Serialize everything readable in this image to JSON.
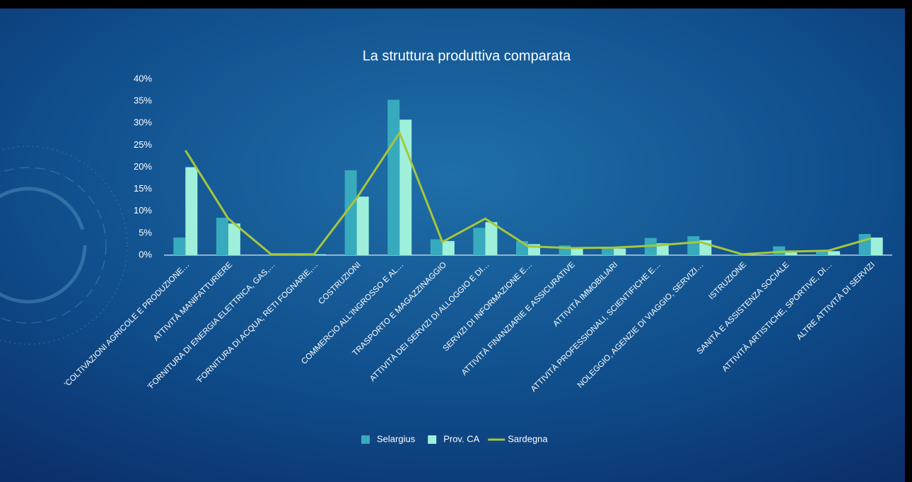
{
  "chart_data": {
    "type": "bar",
    "title": "La struttura produttiva comparata",
    "categories": [
      "'COLTIVAZIONI AGRICOLE E PRODUZIONE…",
      "ATTIVITÀ MANIFATTURIERE",
      "'FORNITURA DI ENERGIA ELETTRICA, GAS,…",
      "'FORNITURA DI ACQUA; RETI FOGNARIE,…",
      "COSTRUZIONI",
      "COMMERCIO ALL'INGROSSO E AL…",
      "TRASPORTO E MAGAZZINAGGIO",
      "ATTIVITÀ DEI SERVIZI DI ALLOGGIO E DI…",
      "SERVIZI DI INFORMAZIONE E…",
      "ATTIVITÀ FINANZIARIE E ASSICURATIVE",
      "ATTIVITÀ IMMOBILIARI",
      "ATTIVITÀ PROFESSIONALI, SCIENTIFICHE E…",
      "NOLEGGIO, AGENZIE DI VIAGGIO, SERVIZI…",
      "ISTRUZIONE",
      "SANITÀ E ASSISTENZA SOCIALE",
      "ATTIVITÀ ARTISTICHE, SPORTIVE, DI…",
      "ALTRE ATTIVITÀ DI SERVIZI"
    ],
    "series": [
      {
        "name": "Selargius",
        "type": "bar",
        "color": "#38aabd",
        "values": [
          4,
          8.5,
          0,
          0,
          19.3,
          35.3,
          3.6,
          6.2,
          3.2,
          2.2,
          1.6,
          3.9,
          4.3,
          0.2,
          2,
          1,
          4.8
        ]
      },
      {
        "name": "Prov. CA",
        "type": "bar",
        "color": "#9ff0da",
        "values": [
          20,
          7.2,
          0.1,
          0.2,
          13.3,
          30.8,
          3.2,
          7.5,
          2.5,
          1.7,
          1.5,
          2.7,
          3.4,
          0.3,
          1,
          0.9,
          4
        ]
      },
      {
        "name": "Sardegna",
        "type": "line",
        "color": "#a6c73a",
        "values": [
          23.8,
          8.3,
          0.2,
          0.2,
          13,
          27.8,
          3,
          8.3,
          2,
          1.6,
          1.7,
          2.2,
          3,
          0.2,
          0.8,
          1,
          3.8
        ]
      }
    ],
    "ylim": [
      0,
      40
    ],
    "yticks": [
      {
        "value": 0,
        "label": "0%"
      },
      {
        "value": 5,
        "label": "5%"
      },
      {
        "value": 10,
        "label": "10%"
      },
      {
        "value": 15,
        "label": "15%"
      },
      {
        "value": 20,
        "label": "20%"
      },
      {
        "value": 25,
        "label": "25%"
      },
      {
        "value": 30,
        "label": "30%"
      },
      {
        "value": 35,
        "label": "35%"
      },
      {
        "value": 40,
        "label": "40%"
      }
    ],
    "legend": "bottom"
  }
}
